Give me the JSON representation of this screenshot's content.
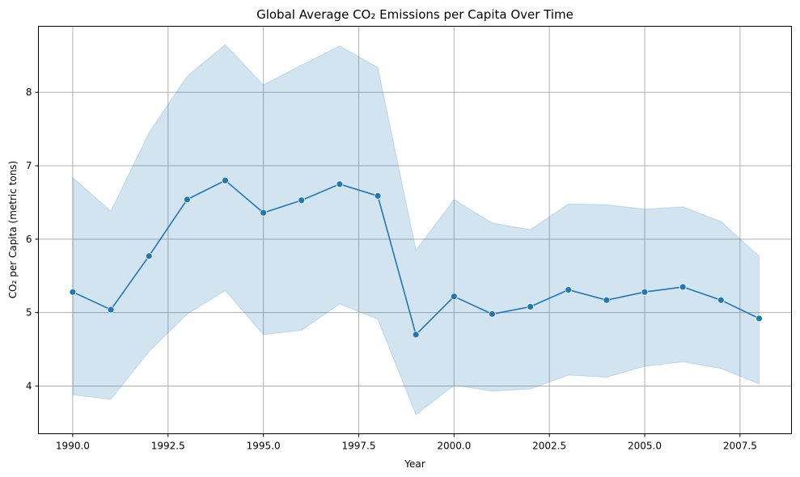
{
  "chart_data": {
    "type": "line",
    "title": "Global Average CO₂ Emissions per Capita Over Time",
    "xlabel": "Year",
    "ylabel": "CO₂ per Capita (metric tons)",
    "xlim": [
      1989.1,
      2008.85
    ],
    "ylim": [
      3.35,
      8.9
    ],
    "xticks": [
      1990.0,
      1992.5,
      1995.0,
      1997.5,
      2000.0,
      2002.5,
      2005.0,
      2007.5
    ],
    "xtick_labels": [
      "1990.0",
      "1992.5",
      "1995.0",
      "1997.5",
      "2000.0",
      "2002.5",
      "2005.0",
      "2007.5"
    ],
    "yticks": [
      4,
      5,
      6,
      7,
      8
    ],
    "ytick_labels": [
      "4",
      "5",
      "6",
      "7",
      "8"
    ],
    "grid": true,
    "series": [
      {
        "x": [
          1990,
          1991,
          1992,
          1993,
          1994,
          1995,
          1996,
          1997,
          1998,
          1999,
          2000,
          2001,
          2002,
          2003,
          2004,
          2005,
          2006,
          2007,
          2008
        ],
        "values": [
          5.28,
          5.04,
          5.77,
          6.54,
          6.8,
          6.36,
          6.53,
          6.75,
          6.59,
          4.7,
          5.22,
          4.98,
          5.08,
          5.31,
          5.17,
          5.28,
          5.35,
          5.17,
          4.92
        ],
        "ci_upper": [
          6.84,
          6.38,
          7.45,
          8.22,
          8.65,
          8.1,
          8.37,
          8.63,
          8.34,
          5.85,
          6.54,
          6.22,
          6.13,
          6.48,
          6.47,
          6.41,
          6.44,
          6.24,
          5.77
        ],
        "ci_lower": [
          3.88,
          3.82,
          4.47,
          4.98,
          5.3,
          4.7,
          4.76,
          5.12,
          4.91,
          3.61,
          4.01,
          3.93,
          3.96,
          4.15,
          4.12,
          4.27,
          4.33,
          4.24,
          4.03
        ],
        "color": "#1f77b4",
        "band_color": "#1f77b4"
      }
    ]
  }
}
